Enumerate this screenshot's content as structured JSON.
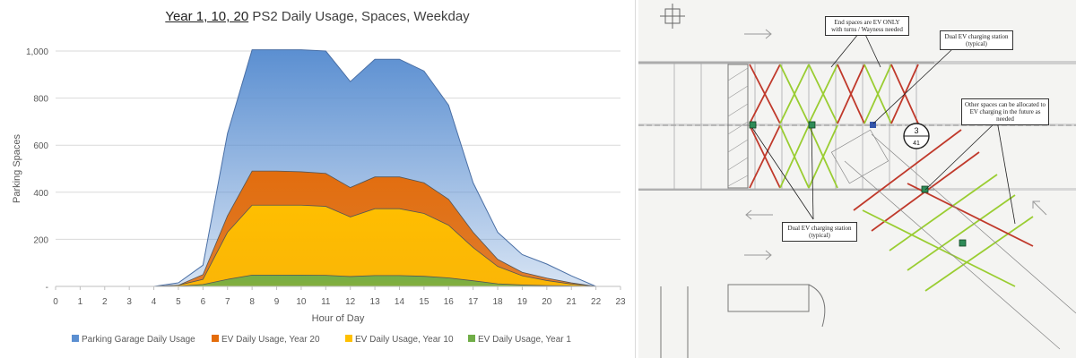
{
  "chart_data": {
    "type": "area",
    "title_emphasis": "Year 1, 10, 20",
    "title_rest": " PS2 Daily Usage, Spaces, Weekday",
    "xlabel": "Hour of Day",
    "ylabel": "Parking Spaces",
    "x": [
      0,
      1,
      2,
      3,
      4,
      5,
      6,
      7,
      8,
      9,
      10,
      11,
      12,
      13,
      14,
      15,
      16,
      17,
      18,
      19,
      20,
      21,
      22,
      23
    ],
    "xlim": [
      0,
      23
    ],
    "ylim": [
      0,
      1000
    ],
    "yticks": [
      0,
      200,
      400,
      600,
      800,
      1000
    ],
    "ytick_labels": [
      "-",
      "200",
      "400",
      "600",
      "800",
      "1,000"
    ],
    "grid": "horizontal",
    "legend_position": "bottom",
    "series": [
      {
        "name": "Parking Garage Daily Usage",
        "color": "#5b8fd1",
        "values": [
          0,
          0,
          0,
          0,
          0,
          15,
          90,
          650,
          1005,
          1005,
          1005,
          1000,
          870,
          965,
          965,
          915,
          770,
          440,
          230,
          135,
          95,
          45,
          0,
          0
        ]
      },
      {
        "name": "EV Daily Usage, Year 20",
        "color": "#e46c0a",
        "values": [
          0,
          0,
          0,
          0,
          0,
          5,
          50,
          300,
          490,
          490,
          487,
          480,
          420,
          465,
          465,
          440,
          370,
          230,
          115,
          60,
          35,
          15,
          0,
          0
        ]
      },
      {
        "name": "EV Daily Usage, Year 10",
        "color": "#ffc000",
        "values": [
          0,
          0,
          0,
          0,
          0,
          5,
          30,
          230,
          345,
          345,
          345,
          340,
          295,
          330,
          330,
          310,
          260,
          165,
          85,
          45,
          25,
          10,
          0,
          0
        ]
      },
      {
        "name": "EV Daily Usage, Year 1",
        "color": "#70ad47",
        "values": [
          0,
          0,
          0,
          0,
          0,
          1,
          8,
          30,
          48,
          48,
          48,
          47,
          42,
          46,
          46,
          43,
          36,
          24,
          11,
          6,
          3,
          2,
          0,
          0
        ]
      }
    ]
  },
  "plan_notes": [
    "End spaces are EV ONLY with turns / Wayness needed",
    "Dual EV charging station (typical)",
    "Other spaces can be allocated to EV charging in the future as needed",
    "Dual EV charging station (typical)"
  ],
  "plan_tag": {
    "top": "3",
    "bottom": "41"
  }
}
